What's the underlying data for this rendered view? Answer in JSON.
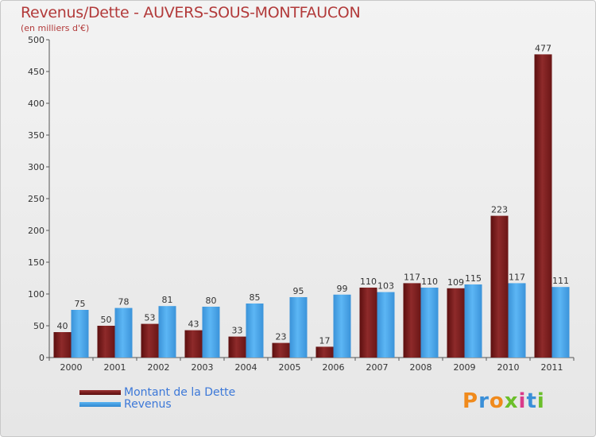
{
  "header": {
    "title": "Revenus/Dette - AUVERS-SOUS-MONTFAUCON",
    "subtitle": "(en milliers d'€)"
  },
  "legend": {
    "dette_label": "Montant de la Dette",
    "revenus_label": "Revenus"
  },
  "logo": {
    "text": "Proxiti"
  },
  "colors": {
    "dette": "#7a1e1e",
    "revenus": "#4aa3e8",
    "title": "#b23a3a",
    "legend_text": "#3c78d8"
  },
  "chart_data": {
    "type": "bar",
    "categories": [
      "2000",
      "2001",
      "2002",
      "2003",
      "2004",
      "2005",
      "2006",
      "2007",
      "2008",
      "2009",
      "2010",
      "2011"
    ],
    "series": [
      {
        "name": "Montant de la Dette",
        "values": [
          40,
          50,
          53,
          43,
          33,
          23,
          17,
          110,
          117,
          109,
          223,
          477
        ]
      },
      {
        "name": "Revenus",
        "values": [
          75,
          78,
          81,
          80,
          85,
          95,
          99,
          103,
          110,
          115,
          117,
          111
        ]
      }
    ],
    "title": "Revenus/Dette - AUVERS-SOUS-MONTFAUCON",
    "ylabel": "(en milliers d'€)",
    "ylim": [
      0,
      500
    ],
    "yticks": [
      0,
      50,
      100,
      150,
      200,
      250,
      300,
      350,
      400,
      450,
      500
    ],
    "grid": false,
    "legend_position": "bottom-left"
  }
}
